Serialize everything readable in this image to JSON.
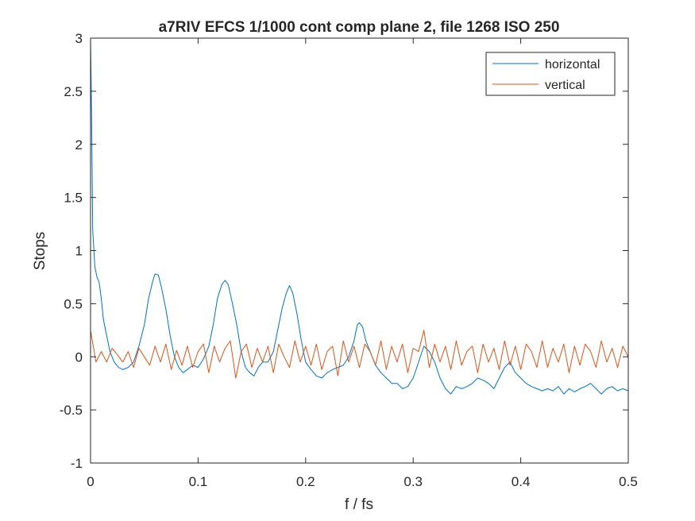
{
  "chart_data": {
    "type": "line",
    "title": "a7RIV EFCS 1/1000 cont comp plane 2, file 1268 ISO 250",
    "xlabel": "f / fs",
    "ylabel": "Stops",
    "xlim": [
      0,
      0.5
    ],
    "ylim": [
      -1,
      3
    ],
    "x_ticks": [
      0,
      0.1,
      0.2,
      0.3,
      0.4,
      0.5
    ],
    "x_tick_labels": [
      "0",
      "0.1",
      "0.2",
      "0.3",
      "0.4",
      "0.5"
    ],
    "y_ticks": [
      -1,
      -0.5,
      0,
      0.5,
      1,
      1.5,
      2,
      2.5,
      3
    ],
    "y_tick_labels": [
      "-1",
      "-0.5",
      "0",
      "0.5",
      "1",
      "1.5",
      "2",
      "2.5",
      "3"
    ],
    "grid": false,
    "legend_position": "top-right",
    "series": [
      {
        "name": "horizontal",
        "color": "#0072BD",
        "x": [
          0,
          0.001,
          0.002,
          0.004,
          0.006,
          0.008,
          0.01,
          0.012,
          0.015,
          0.018,
          0.022,
          0.026,
          0.03,
          0.035,
          0.04,
          0.045,
          0.05,
          0.054,
          0.058,
          0.06,
          0.063,
          0.066,
          0.07,
          0.074,
          0.078,
          0.082,
          0.086,
          0.09,
          0.095,
          0.1,
          0.105,
          0.11,
          0.114,
          0.118,
          0.122,
          0.125,
          0.128,
          0.132,
          0.136,
          0.14,
          0.144,
          0.148,
          0.152,
          0.156,
          0.16,
          0.165,
          0.17,
          0.174,
          0.178,
          0.182,
          0.185,
          0.188,
          0.192,
          0.196,
          0.2,
          0.205,
          0.21,
          0.215,
          0.22,
          0.225,
          0.23,
          0.235,
          0.24,
          0.245,
          0.248,
          0.25,
          0.253,
          0.256,
          0.26,
          0.265,
          0.27,
          0.275,
          0.28,
          0.285,
          0.29,
          0.295,
          0.3,
          0.305,
          0.31,
          0.315,
          0.32,
          0.325,
          0.33,
          0.335,
          0.34,
          0.345,
          0.35,
          0.355,
          0.36,
          0.365,
          0.37,
          0.375,
          0.38,
          0.385,
          0.39,
          0.395,
          0.4,
          0.405,
          0.41,
          0.415,
          0.42,
          0.425,
          0.43,
          0.435,
          0.44,
          0.445,
          0.45,
          0.455,
          0.46,
          0.465,
          0.47,
          0.475,
          0.48,
          0.485,
          0.49,
          0.495,
          0.5
        ],
        "values": [
          3.0,
          2.2,
          1.2,
          0.85,
          0.75,
          0.7,
          0.55,
          0.35,
          0.2,
          0.05,
          -0.05,
          -0.1,
          -0.12,
          -0.1,
          -0.05,
          0.1,
          0.3,
          0.55,
          0.72,
          0.78,
          0.77,
          0.65,
          0.45,
          0.2,
          0.0,
          -0.1,
          -0.15,
          -0.12,
          -0.08,
          -0.1,
          -0.02,
          0.1,
          0.3,
          0.55,
          0.68,
          0.72,
          0.68,
          0.5,
          0.3,
          0.05,
          -0.1,
          -0.15,
          -0.18,
          -0.1,
          -0.05,
          -0.05,
          0.05,
          0.25,
          0.45,
          0.6,
          0.67,
          0.6,
          0.4,
          0.15,
          -0.05,
          -0.12,
          -0.18,
          -0.2,
          -0.15,
          -0.12,
          -0.1,
          -0.08,
          0.0,
          0.15,
          0.3,
          0.32,
          0.28,
          0.15,
          0.05,
          -0.08,
          -0.15,
          -0.2,
          -0.25,
          -0.25,
          -0.3,
          -0.28,
          -0.2,
          -0.05,
          0.1,
          0.05,
          -0.05,
          -0.2,
          -0.3,
          -0.35,
          -0.28,
          -0.3,
          -0.28,
          -0.25,
          -0.2,
          -0.22,
          -0.25,
          -0.3,
          -0.2,
          -0.1,
          -0.05,
          -0.15,
          -0.2,
          -0.25,
          -0.28,
          -0.3,
          -0.32,
          -0.3,
          -0.32,
          -0.28,
          -0.35,
          -0.3,
          -0.33,
          -0.3,
          -0.28,
          -0.25,
          -0.3,
          -0.35,
          -0.3,
          -0.28,
          -0.32,
          -0.3,
          -0.32
        ]
      },
      {
        "name": "vertical",
        "color": "#D95319",
        "x": [
          0,
          0.005,
          0.01,
          0.015,
          0.02,
          0.025,
          0.03,
          0.035,
          0.04,
          0.045,
          0.05,
          0.055,
          0.06,
          0.065,
          0.07,
          0.075,
          0.08,
          0.085,
          0.09,
          0.095,
          0.1,
          0.105,
          0.11,
          0.115,
          0.12,
          0.125,
          0.13,
          0.135,
          0.14,
          0.145,
          0.15,
          0.155,
          0.16,
          0.165,
          0.17,
          0.175,
          0.18,
          0.185,
          0.19,
          0.195,
          0.2,
          0.205,
          0.21,
          0.215,
          0.22,
          0.225,
          0.23,
          0.235,
          0.24,
          0.245,
          0.25,
          0.255,
          0.26,
          0.265,
          0.27,
          0.275,
          0.28,
          0.285,
          0.29,
          0.295,
          0.3,
          0.305,
          0.31,
          0.315,
          0.32,
          0.325,
          0.33,
          0.335,
          0.34,
          0.345,
          0.35,
          0.355,
          0.36,
          0.365,
          0.37,
          0.375,
          0.38,
          0.385,
          0.39,
          0.395,
          0.4,
          0.405,
          0.41,
          0.415,
          0.42,
          0.425,
          0.43,
          0.435,
          0.44,
          0.445,
          0.45,
          0.455,
          0.46,
          0.465,
          0.47,
          0.475,
          0.48,
          0.485,
          0.49,
          0.495,
          0.5
        ],
        "values": [
          0.25,
          -0.05,
          0.05,
          -0.05,
          0.08,
          0.02,
          -0.05,
          0.05,
          -0.1,
          0.08,
          0.0,
          -0.08,
          0.1,
          -0.05,
          0.12,
          -0.12,
          0.06,
          -0.08,
          0.1,
          -0.1,
          0.05,
          0.12,
          -0.15,
          0.1,
          -0.05,
          0.08,
          0.15,
          -0.2,
          0.05,
          0.12,
          -0.1,
          0.08,
          -0.05,
          0.1,
          -0.15,
          0.12,
          0.0,
          -0.1,
          0.15,
          -0.05,
          0.1,
          -0.08,
          0.12,
          -0.12,
          0.05,
          0.1,
          -0.18,
          0.15,
          -0.05,
          0.1,
          -0.1,
          0.12,
          0.05,
          -0.08,
          0.15,
          -0.12,
          0.1,
          -0.05,
          0.12,
          -0.15,
          0.08,
          0.05,
          0.25,
          -0.1,
          0.12,
          -0.05,
          0.1,
          -0.12,
          0.15,
          -0.08,
          0.05,
          0.1,
          -0.15,
          0.12,
          -0.05,
          0.08,
          -0.12,
          0.15,
          -0.08,
          0.1,
          -0.12,
          0.12,
          0.05,
          -0.1,
          0.15,
          -0.1,
          0.08,
          -0.05,
          0.12,
          -0.15,
          0.1,
          -0.08,
          0.12,
          0.05,
          -0.1,
          0.15,
          -0.05,
          0.08,
          -0.1,
          0.1,
          0.0
        ]
      }
    ]
  }
}
